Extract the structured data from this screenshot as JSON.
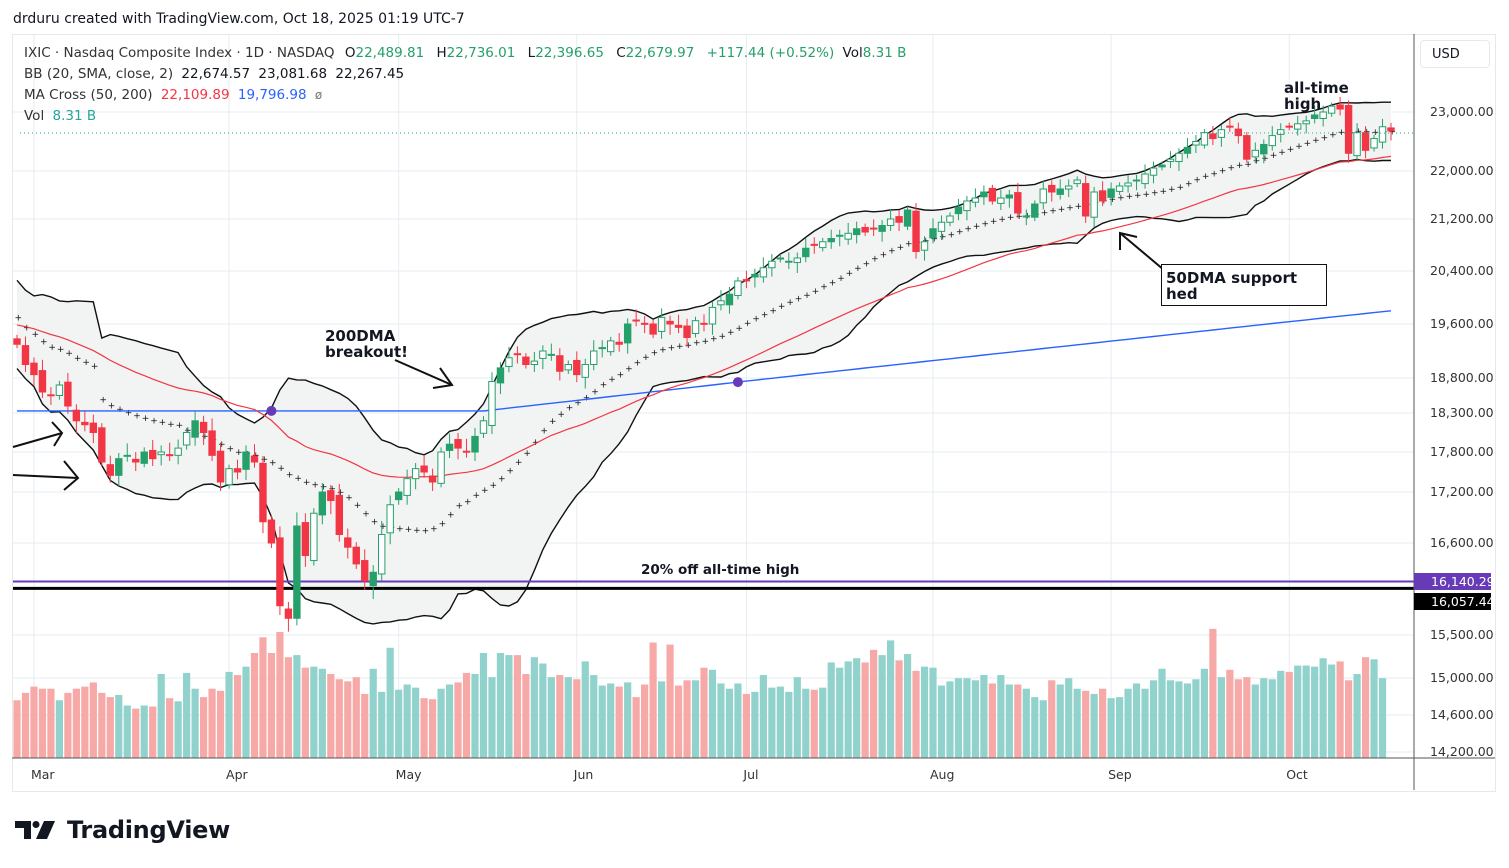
{
  "credit": "drduru created with TradingView.com, Oct 18, 2025 01:19 UTC-7",
  "legend": {
    "symbol": "IXIC · Nasdaq Composite Index · 1D · NASDAQ",
    "o_label": "O",
    "o_value": "22,489.81",
    "h_label": "H",
    "h_value": "22,736.01",
    "l_label": "L",
    "l_value": "22,396.65",
    "c_label": "C",
    "c_value": "22,679.97",
    "change": "+117.44 (+0.52%)",
    "vol_label": "Vol",
    "vol_value": "8.31 B",
    "bb_label": "BB (20, SMA, close, 2)",
    "bb_basis": "22,674.57",
    "bb_upper": "23,081.68",
    "bb_lower": "22,267.45",
    "ma_label": "MA Cross (50, 200)",
    "ma_fast": "22,109.89",
    "ma_slow": "19,796.98",
    "ma_glyph": "ø",
    "vol_row_label": "Vol",
    "vol_row_value": "8.31 B"
  },
  "currency": "USD",
  "price_tags": [
    {
      "label": "16,140.29",
      "value": 16140.29,
      "color": "#673ab7"
    },
    {
      "label": "16,057.44",
      "value": 16057.44,
      "color": "#000000"
    }
  ],
  "logo_text": "TradingView",
  "colors": {
    "up": "#26a06a",
    "down": "#f23645",
    "vol_up": "#92d2cc",
    "vol_down": "#f7a9a7",
    "ma50": "#f23645",
    "ma200": "#2962ff",
    "cross": "#673ab7",
    "band_fill": "#f2f4f4"
  },
  "chart_data": {
    "type": "candlestick",
    "title": "IXIC · Nasdaq Composite Index · 1D · NASDAQ",
    "y_ticks": [
      "23,000.00",
      "22,000.00",
      "21,200.00",
      "20,400.00",
      "19,600.00",
      "18,800.00",
      "18,300.00",
      "17,800.00",
      "17,200.00",
      "16,600.00",
      "15,500.00",
      "15,000.00",
      "14,600.00",
      "14,200.00"
    ],
    "y_tick_values": [
      23000,
      22000,
      21200,
      20400,
      19600,
      18800,
      18300,
      17800,
      17200,
      16600,
      15500,
      15000,
      14600,
      14200
    ],
    "x_ticks": [
      "Mar",
      "Apr",
      "May",
      "Jun",
      "Jul",
      "Aug",
      "Sep",
      "Oct"
    ],
    "x_tick_index": [
      2,
      25,
      45,
      66,
      86,
      108,
      129,
      150
    ],
    "horizontal_lines": [
      {
        "value": 16140.29,
        "color": "#673ab7",
        "label": "20% off all-time high"
      },
      {
        "value": 16057.44,
        "color": "#000000"
      }
    ],
    "annotations": [
      {
        "text": "200DMA breakout!"
      },
      {
        "text": "50DMA support hed"
      },
      {
        "text": "all-time high"
      },
      {
        "text": "20% off all-time high"
      }
    ],
    "close": [
      19300,
      19000,
      18850,
      18600,
      18550,
      18700,
      18400,
      18200,
      18150,
      18050,
      17650,
      17450,
      17700,
      17750,
      17650,
      17800,
      17700,
      17800,
      17750,
      17850,
      18050,
      18200,
      18050,
      17750,
      17350,
      17550,
      17500,
      17800,
      17650,
      16850,
      16600,
      15850,
      15700,
      16800,
      16450,
      16950,
      17200,
      17100,
      16700,
      16550,
      16350,
      16150,
      16250,
      16700,
      17050,
      17200,
      17400,
      17550,
      17500,
      17350,
      17800,
      17900,
      17850,
      17800,
      18000,
      18200,
      18750,
      18950,
      19100,
      19150,
      19000,
      19050,
      19200,
      19150,
      18900,
      19000,
      18850,
      19000,
      19200,
      19250,
      19350,
      19300,
      19600,
      19650,
      19600,
      19450,
      19700,
      19600,
      19550,
      19400,
      19650,
      19600,
      19850,
      19950,
      20050,
      20250,
      20250,
      20350,
      20450,
      20550,
      20600,
      20550,
      20600,
      20750,
      20800,
      20850,
      20900,
      20950,
      20980,
      21050,
      21000,
      21050,
      21100,
      21200,
      21150,
      21350,
      20700,
      20850,
      21050,
      21150,
      21250,
      21400,
      21500,
      21550,
      21650,
      21500,
      21550,
      21600,
      21300,
      21250,
      21450,
      21700,
      21650,
      21700,
      21750,
      21850,
      21250,
      21650,
      21500,
      21700,
      21750,
      21800,
      21850,
      21950,
      22050,
      22100,
      22200,
      22300,
      22400,
      22500,
      22650,
      22550,
      22700,
      22750,
      22600,
      22200,
      22350,
      22450,
      22600,
      22700,
      22750,
      22800,
      22850,
      22950,
      23000,
      23100,
      23050,
      22300,
      22650,
      22350,
      22550,
      22750,
      22680
    ],
    "volume_note": "Volume bars colored by candle direction; scale unlabeled",
    "volume_rel": [
      0.55,
      0.62,
      0.68,
      0.66,
      0.66,
      0.55,
      0.62,
      0.66,
      0.68,
      0.72,
      0.62,
      0.58,
      0.6,
      0.5,
      0.47,
      0.5,
      0.49,
      0.8,
      0.57,
      0.54,
      0.81,
      0.66,
      0.58,
      0.66,
      0.64,
      0.82,
      0.79,
      0.87,
      1.0,
      1.15,
      1.0,
      1.2,
      0.96,
      0.98,
      0.86,
      0.87,
      0.85,
      0.8,
      0.75,
      0.73,
      0.77,
      0.61,
      0.85,
      0.63,
      1.05,
      0.65,
      0.7,
      0.67,
      0.57,
      0.56,
      0.66,
      0.7,
      0.72,
      0.81,
      0.8,
      1.0,
      0.77,
      1.0,
      0.98,
      0.98,
      0.8,
      0.96,
      0.9,
      0.77,
      0.79,
      0.77,
      0.75,
      0.92,
      0.79,
      0.69,
      0.71,
      0.68,
      0.72,
      0.58,
      0.7,
      1.1,
      0.73,
      1.08,
      0.69,
      0.74,
      0.74,
      0.86,
      0.84,
      0.71,
      0.66,
      0.71,
      0.61,
      0.63,
      0.79,
      0.67,
      0.68,
      0.63,
      0.77,
      0.66,
      0.65,
      0.67,
      0.91,
      0.86,
      0.92,
      0.95,
      0.91,
      1.03,
      0.98,
      1.12,
      0.93,
      0.99,
      0.83,
      0.87,
      0.86,
      0.69,
      0.73,
      0.76,
      0.76,
      0.74,
      0.79,
      0.71,
      0.79,
      0.7,
      0.7,
      0.66,
      0.58,
      0.55,
      0.74,
      0.7,
      0.76,
      0.66,
      0.64,
      0.61,
      0.66,
      0.57,
      0.58,
      0.66,
      0.71,
      0.66,
      0.74,
      0.85,
      0.74,
      0.73,
      0.71,
      0.75,
      0.85,
      1.23,
      0.77,
      0.84,
      0.75,
      0.77,
      0.7,
      0.76,
      0.75,
      0.83,
      0.82,
      0.88,
      0.88,
      0.87,
      0.95,
      0.89,
      0.92,
      0.74,
      0.8,
      0.96,
      0.94,
      0.76
    ]
  }
}
